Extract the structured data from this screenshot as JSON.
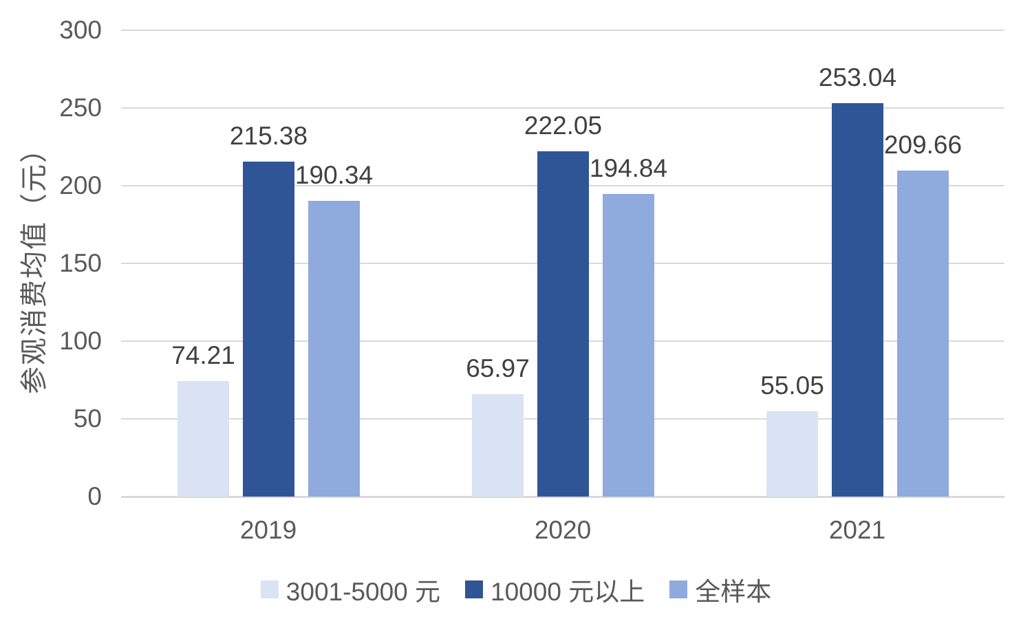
{
  "chart_data": {
    "type": "bar",
    "title": "",
    "categories": [
      "2019",
      "2020",
      "2021"
    ],
    "series": [
      {
        "name": "3001-5000 元",
        "color": "#DAE3F3",
        "values": [
          74.21,
          65.97,
          55.05
        ]
      },
      {
        "name": "10000 元以上",
        "color": "#2F5597",
        "values": [
          215.38,
          222.05,
          253.04
        ]
      },
      {
        "name": "全样本",
        "color": "#8FAADC",
        "values": [
          190.34,
          194.84,
          209.66
        ]
      }
    ],
    "data_labels": [
      "74.21",
      "215.38",
      "190.34",
      "65.97",
      "222.05",
      "194.84",
      "55.05",
      "253.04",
      "209.66"
    ],
    "xlabel": "",
    "ylabel": "参观消费均值（元）",
    "ylim": [
      0,
      300
    ],
    "yticks": [
      0,
      50,
      100,
      150,
      200,
      250,
      300
    ],
    "grid": true,
    "legend_position": "bottom"
  },
  "style": {
    "background": "#FFFFFF",
    "grid_color": "#D9D9D9",
    "axis_text_color": "#595959",
    "data_label_color": "#404040"
  }
}
